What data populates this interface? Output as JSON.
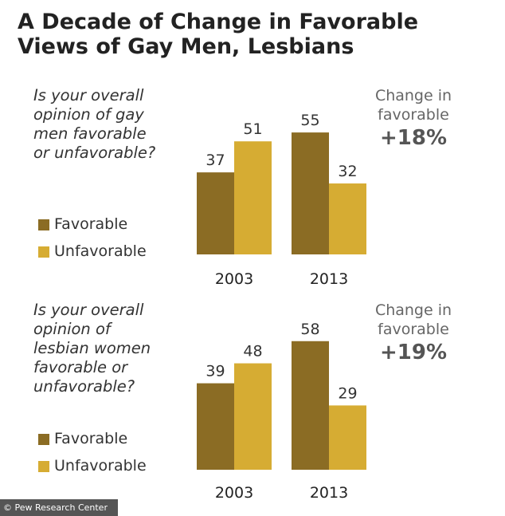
{
  "title": {
    "lines": [
      "A Decade of Change in Favorable",
      "Views of Gay Men, Lesbians"
    ]
  },
  "colors": {
    "favorable": "#8b6c24",
    "unfavorable": "#d6ac33"
  },
  "legend": {
    "favorable": "Favorable",
    "unfavorable": "Unfavorable"
  },
  "panels": [
    {
      "question_lines": [
        "Is your overall",
        "opinion of gay",
        "men favorable",
        "or unfavorable?"
      ],
      "change_label_lines": [
        "Change in",
        "favorable"
      ],
      "change_value": "+18%"
    },
    {
      "question_lines": [
        "Is your overall",
        "opinion of",
        "lesbian women",
        "favorable or",
        "unfavorable?"
      ],
      "change_label_lines": [
        "Change in",
        "favorable"
      ],
      "change_value": "+19%"
    }
  ],
  "chart_data": [
    {
      "type": "bar",
      "title": "Is your overall opinion of gay men favorable or unfavorable?",
      "categories": [
        "2003",
        "2013"
      ],
      "series": [
        {
          "name": "Favorable",
          "values": [
            37,
            55
          ]
        },
        {
          "name": "Unfavorable",
          "values": [
            51,
            32
          ]
        }
      ],
      "ylim": [
        0,
        60
      ],
      "legend": [
        "Favorable",
        "Unfavorable"
      ]
    },
    {
      "type": "bar",
      "title": "Is your overall opinion of lesbian women favorable or unfavorable?",
      "categories": [
        "2003",
        "2013"
      ],
      "series": [
        {
          "name": "Favorable",
          "values": [
            39,
            58
          ]
        },
        {
          "name": "Unfavorable",
          "values": [
            48,
            29
          ]
        }
      ],
      "ylim": [
        0,
        60
      ],
      "legend": [
        "Favorable",
        "Unfavorable"
      ]
    }
  ],
  "footer": {
    "credit": "© Pew Research Center"
  }
}
